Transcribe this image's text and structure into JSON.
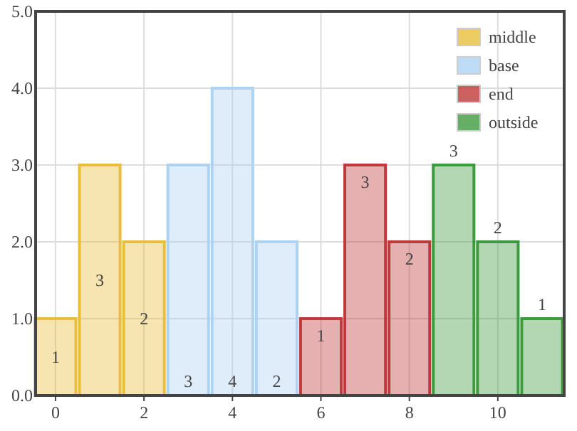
{
  "chart_data": {
    "type": "bar",
    "xlim": [
      -0.45,
      11.5
    ],
    "xticks": [
      0,
      2,
      4,
      6,
      8,
      10
    ],
    "ylim": [
      0,
      5
    ],
    "yticks": [
      {
        "value": 0,
        "label": "0.0"
      },
      {
        "value": 1,
        "label": "1.0"
      },
      {
        "value": 2,
        "label": "2.0"
      },
      {
        "value": 3,
        "label": "3.0"
      },
      {
        "value": 4,
        "label": "4.0"
      },
      {
        "value": 5,
        "label": "5.0"
      }
    ],
    "grid": true,
    "legend": "top right",
    "data_labels": true,
    "series": [
      {
        "name": "middle",
        "color": "#e8be3c",
        "x": [
          0,
          1,
          2
        ],
        "values": [
          1,
          3,
          2
        ]
      },
      {
        "name": "base",
        "color": "#aed3f2",
        "x": [
          3,
          4,
          5
        ],
        "values": [
          3,
          4,
          2
        ]
      },
      {
        "name": "end",
        "color": "#c0393b",
        "x": [
          6,
          7,
          8
        ],
        "values": [
          1,
          3,
          2
        ]
      },
      {
        "name": "outside",
        "color": "#3e9a3e",
        "x": [
          9,
          10,
          11
        ],
        "values": [
          3,
          2,
          1
        ]
      }
    ]
  }
}
